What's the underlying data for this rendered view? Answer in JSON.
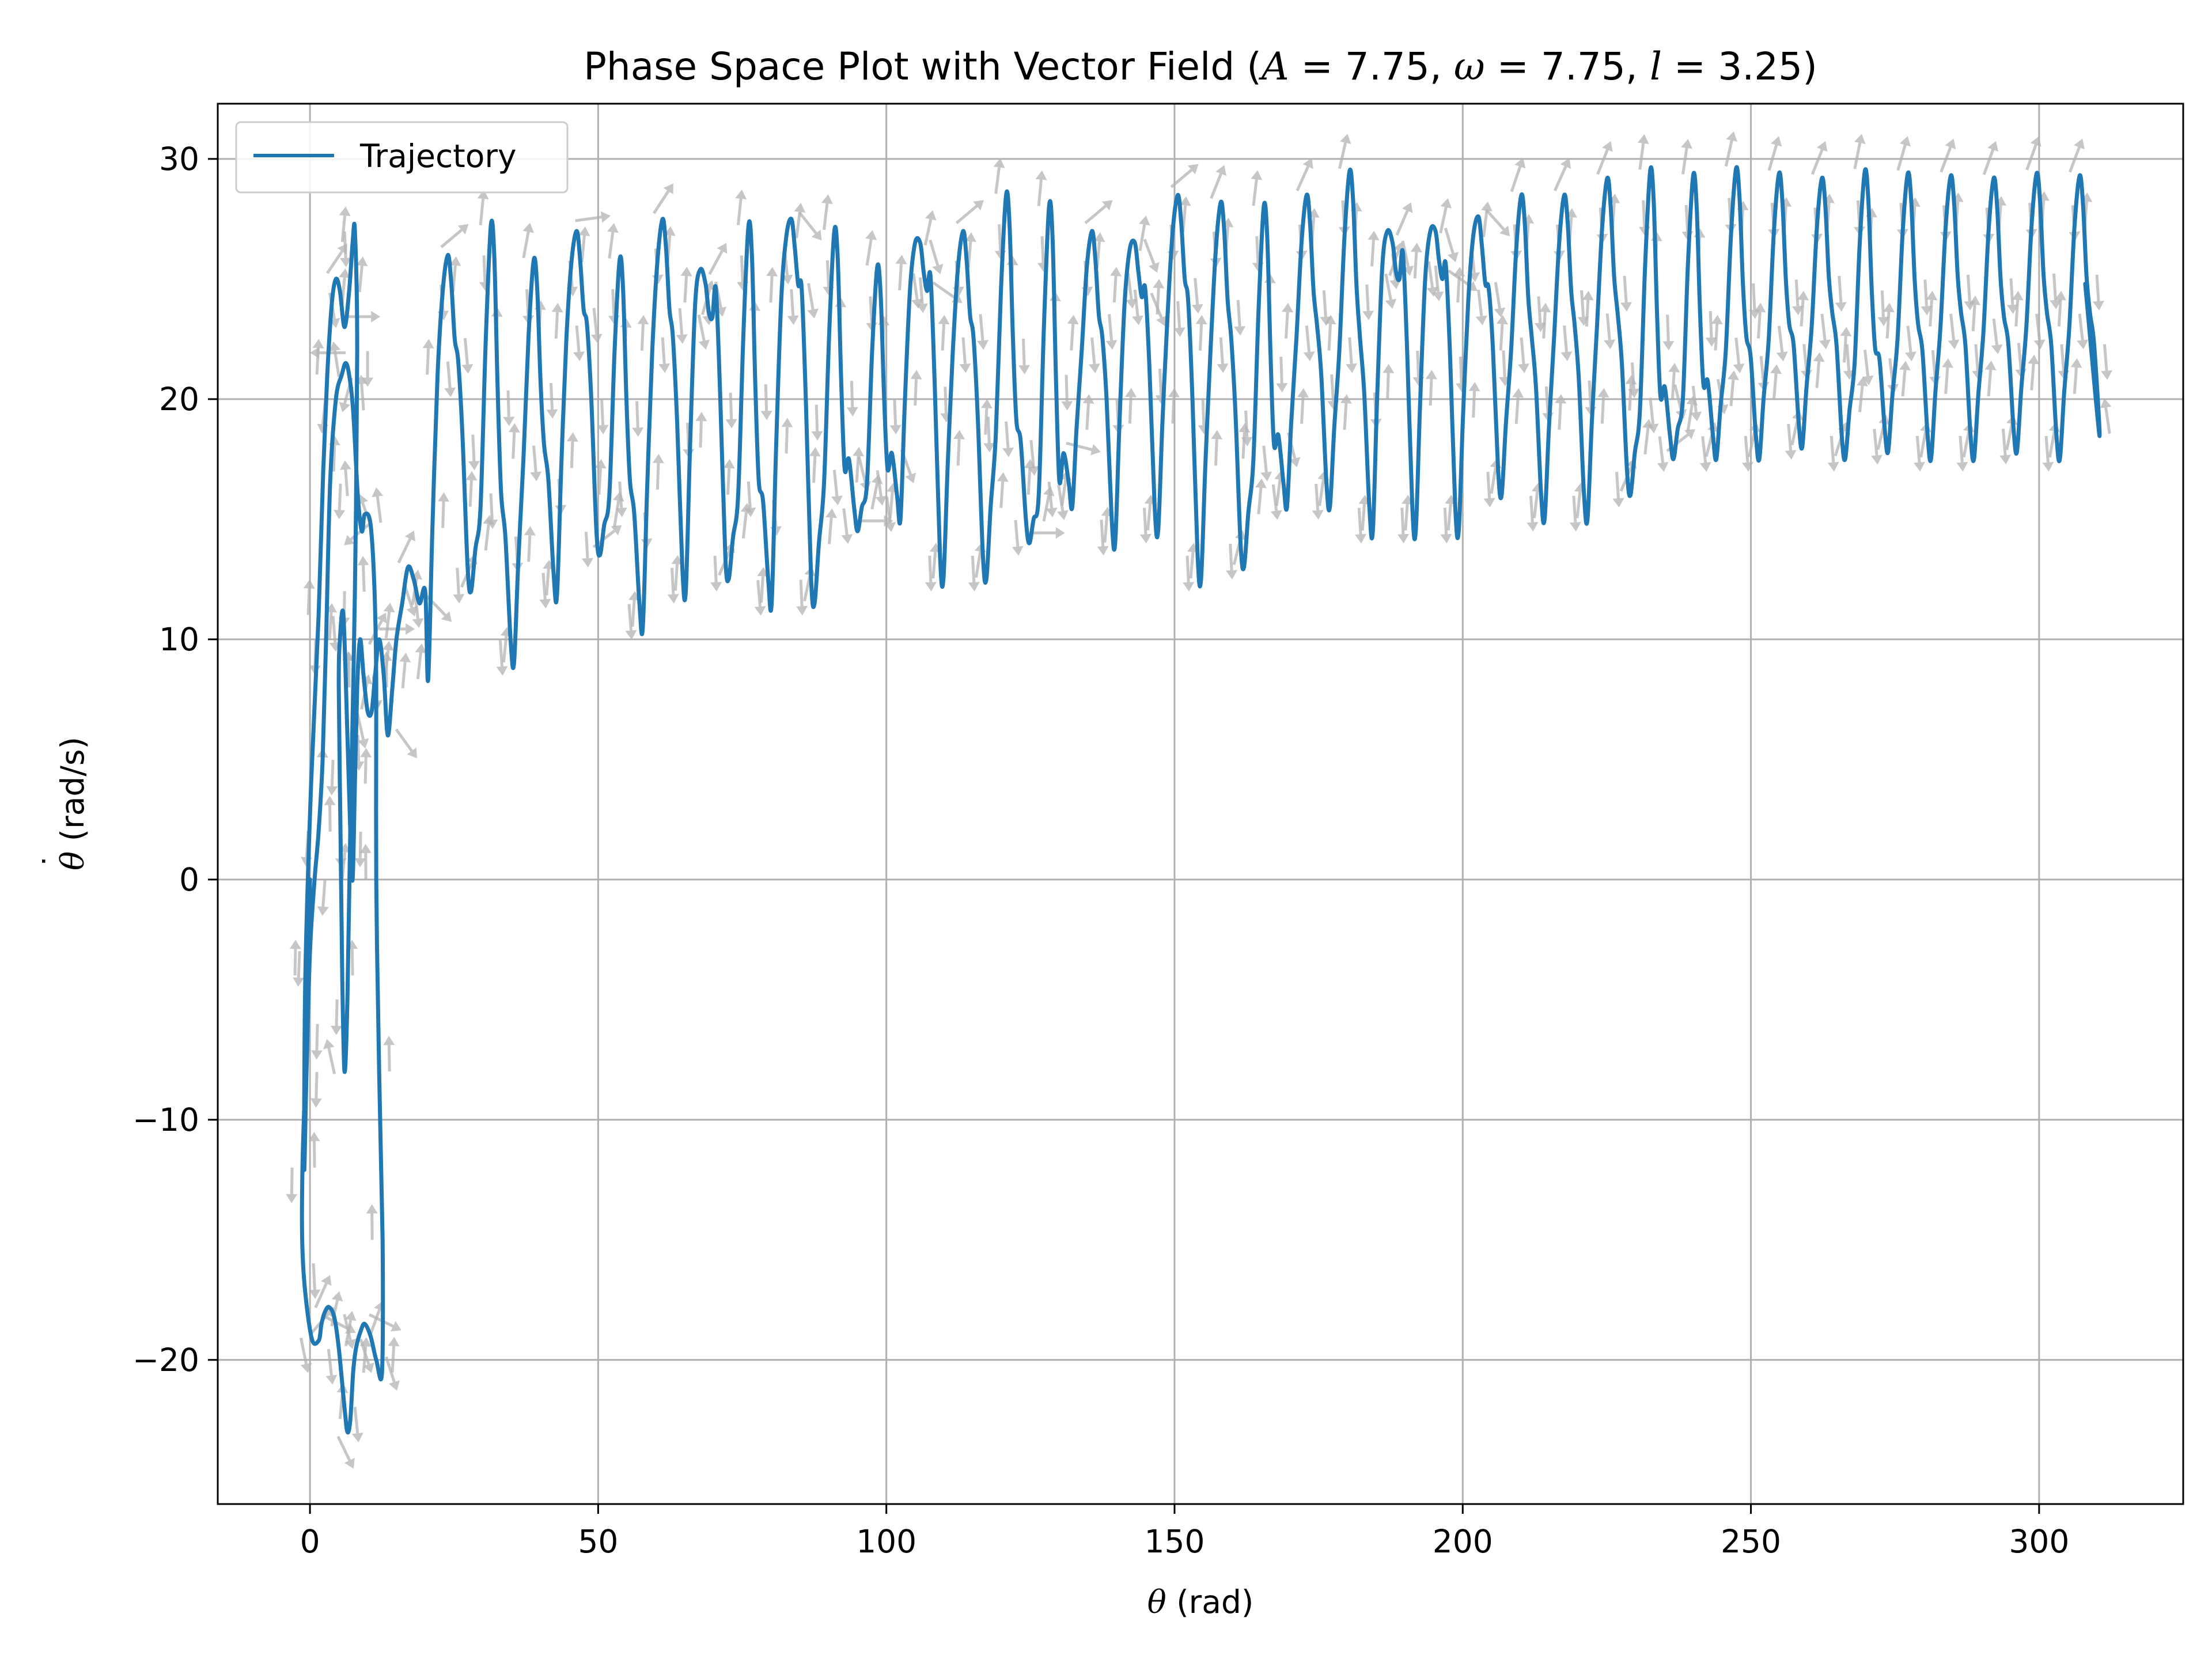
{
  "chart_data": {
    "type": "line",
    "title": {
      "prefix": "Phase Space Plot with Vector Field (",
      "A_sym": "A",
      "A_val": " = 7.75, ",
      "w_sym": "ω",
      "w_val": " = 7.75, ",
      "l_sym": "l",
      "l_val": " = 3.25)"
    },
    "xlabel": {
      "sym": "θ",
      "unit": " (rad)"
    },
    "ylabel": {
      "dot": "˙",
      "sym": "θ",
      "unit": " (rad/s)"
    },
    "xlim": [
      -16,
      325
    ],
    "ylim": [
      -26,
      32.3
    ],
    "xticks": [
      0,
      50,
      100,
      150,
      200,
      250,
      300
    ],
    "yticks": [
      -20,
      -10,
      0,
      10,
      20,
      30
    ],
    "xtick_labels": [
      "0",
      "50",
      "100",
      "150",
      "200",
      "250",
      "300"
    ],
    "ytick_labels": [
      "−20",
      "−10",
      "0",
      "10",
      "20",
      "30"
    ],
    "grid": true,
    "legend": {
      "position": "top-left",
      "entries": [
        "Trajectory"
      ]
    },
    "series_color": "#1f77b4",
    "quiver_color": "#b3b3b3",
    "series": [
      {
        "name": "Trajectory",
        "x": [
          0,
          -0.5,
          -1.3,
          -1.2,
          0.2,
          1.5,
          2.0,
          2.6,
          3.3,
          4.2,
          5.0,
          6.0,
          6.5,
          7.0,
          7.5,
          8.0,
          8.8,
          9.5,
          10.5,
          11.5,
          12.5,
          12.6,
          12.0,
          11.5,
          11.5,
          11.2,
          10.5,
          9.5,
          9.0,
          8.3,
          7.5,
          6.8,
          6.2,
          5.5,
          4.5,
          3.5,
          2.8,
          2.2,
          1.5,
          0.8,
          0.0,
          -0.6,
          -1.0,
          -0.8,
          0.2,
          1.5,
          2.3,
          3.0,
          3.8,
          4.5,
          5.2,
          6.0,
          6.8,
          7.4,
          7.8,
          8.2,
          7.8,
          7.0,
          6.5,
          6.0,
          5.6,
          5.3,
          5.0,
          5.2,
          5.8,
          6.5,
          7.0,
          7.4,
          7.8,
          8.2,
          8.7,
          9.3,
          10.0,
          10.7,
          11.3,
          12.0,
          12.8,
          13.5,
          14.3,
          15.0,
          16.0,
          17.0,
          18.0,
          19.0,
          20.0
        ],
        "y": [
          0,
          -6,
          -12,
          -16,
          -19,
          -19.2,
          -18.5,
          -18.0,
          -17.8,
          -18.2,
          -19.5,
          -22.0,
          -23.0,
          -22.5,
          -20.5,
          -19.5,
          -18.8,
          -18.5,
          -19.0,
          -20.0,
          -20.5,
          -15.0,
          -8.0,
          0.0,
          8.0,
          12.0,
          14.8,
          15.2,
          14.5,
          16.0,
          19.5,
          21.0,
          21.5,
          21.0,
          20.0,
          16.5,
          10.0,
          5.0,
          2.0,
          0.0,
          -3.0,
          -8.0,
          -12.0,
          -4.0,
          4.0,
          11.0,
          17.0,
          21.0,
          24.0,
          25.0,
          24.5,
          23.0,
          24.5,
          26.5,
          27.0,
          22.0,
          12.0,
          2.0,
          -5.0,
          -8.0,
          -4.0,
          2.0,
          8.0,
          10.0,
          11.0,
          6.0,
          2.0,
          0.0,
          4.0,
          8.0,
          10.0,
          8.5,
          7.0,
          7.0,
          8.5,
          10.0,
          8.5,
          6.0,
          8.0,
          10.0,
          11.5,
          13.0,
          12.5,
          11.5,
          12.0
        ]
      }
    ],
    "loop_cycle": {
      "x_start": 20.5,
      "period": 7.45,
      "count": 39,
      "x_end": 308,
      "base_peak": [
        26.0,
        27.2,
        25.8,
        27.0,
        25.8,
        27.5,
        24.8,
        27.2,
        27.5,
        27.0,
        25.5,
        26.5,
        27.0,
        28.5,
        28.0,
        27.0,
        26.5,
        28.5,
        28.2,
        28.0,
        28.5,
        29.5,
        26.5,
        27.0,
        27.6,
        28.5,
        28.5,
        29.2,
        29.5,
        29.3,
        29.6,
        29.4,
        29.2,
        29.5,
        29.4,
        29.3,
        29.2,
        29.4,
        29.3
      ],
      "trough": [
        8.3,
        12.0,
        9.0,
        11.8,
        13.5,
        10.5,
        12.0,
        12.5,
        11.5,
        11.5,
        14.5,
        15.0,
        12.5,
        12.5,
        14.0,
        15.5,
        14.0,
        14.5,
        12.5,
        13.0,
        15.5,
        15.5,
        14.5,
        14.5,
        14.5,
        16.0,
        15.0,
        15.0,
        16.0,
        17.5,
        17.5,
        17.5,
        18.0,
        17.5,
        17.8,
        17.5,
        17.5,
        17.8,
        17.5
      ],
      "shoulder": [
        21.0,
        15.5,
        17.5,
        22.5,
        16.0,
        22.0,
        24.0,
        16.0,
        24.0,
        16.5,
        16.5,
        24.5,
        22.0,
        18.5,
        16.0,
        22.0,
        24.0,
        23.5,
        22.0,
        17.5,
        22.5,
        22.0,
        25.5,
        25.0,
        24.0,
        22.0,
        22.5,
        23.0,
        19.5,
        20.0,
        22.0,
        22.5,
        23.0,
        21.5,
        22.5,
        23.0,
        22.8,
        23.0,
        23.0
      ],
      "end_value": 24.8
    }
  }
}
